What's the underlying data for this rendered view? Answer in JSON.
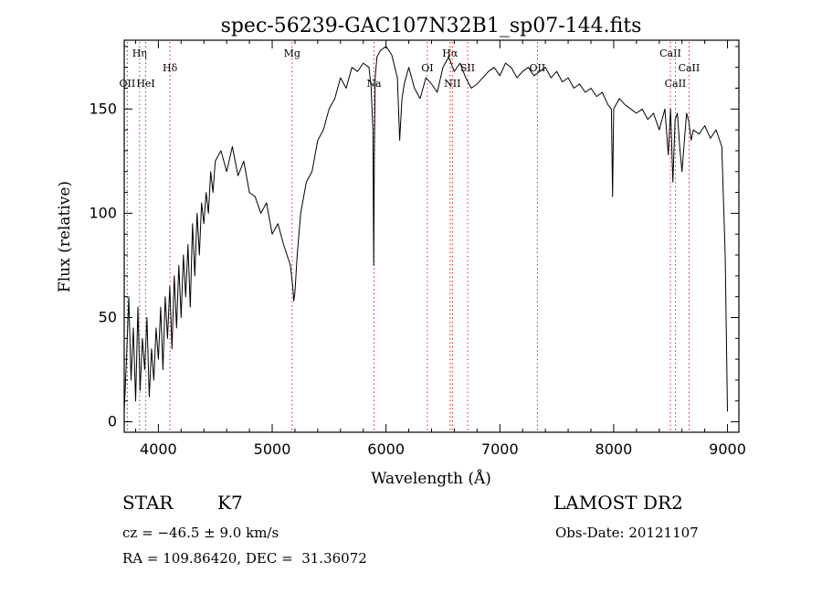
{
  "chart_data": {
    "type": "line",
    "title": "spec-56239-GAC107N32B1_sp07-144.fits",
    "xlabel": "Wavelength (Å)",
    "ylabel": "Flux (relative)",
    "xlim": [
      3700,
      9100
    ],
    "ylim": [
      -5,
      183
    ],
    "xticks": [
      4000,
      5000,
      6000,
      7000,
      8000,
      9000
    ],
    "xtick_labels": [
      "4000",
      "5000",
      "6000",
      "7000",
      "8000",
      "9000"
    ],
    "yticks": [
      0,
      50,
      100,
      150
    ],
    "ytick_labels": [
      "0",
      "50",
      "100",
      "150"
    ],
    "grid": false,
    "series": [
      {
        "color": "#000000",
        "x": [
          3700,
          3720,
          3740,
          3760,
          3780,
          3800,
          3820,
          3840,
          3860,
          3880,
          3900,
          3920,
          3940,
          3960,
          3980,
          4000,
          4020,
          4040,
          4060,
          4080,
          4100,
          4120,
          4140,
          4160,
          4180,
          4200,
          4220,
          4240,
          4260,
          4280,
          4300,
          4320,
          4340,
          4360,
          4380,
          4400,
          4420,
          4440,
          4460,
          4480,
          4500,
          4550,
          4600,
          4650,
          4700,
          4750,
          4800,
          4850,
          4900,
          4950,
          5000,
          5050,
          5100,
          5130,
          5160,
          5180,
          5190,
          5200,
          5220,
          5250,
          5300,
          5350,
          5400,
          5450,
          5500,
          5550,
          5600,
          5650,
          5700,
          5750,
          5800,
          5850,
          5870,
          5885,
          5892,
          5898,
          5905,
          5920,
          5950,
          6000,
          6050,
          6100,
          6120,
          6140,
          6160,
          6200,
          6250,
          6300,
          6350,
          6400,
          6450,
          6500,
          6550,
          6600,
          6650,
          6700,
          6750,
          6800,
          6850,
          6900,
          6950,
          7000,
          7050,
          7100,
          7150,
          7200,
          7250,
          7300,
          7350,
          7400,
          7450,
          7500,
          7550,
          7600,
          7650,
          7700,
          7750,
          7800,
          7850,
          7900,
          7950,
          7980,
          7990,
          8000,
          8050,
          8100,
          8150,
          8200,
          8250,
          8300,
          8350,
          8400,
          8450,
          8480,
          8500,
          8520,
          8540,
          8560,
          8580,
          8600,
          8640,
          8660,
          8680,
          8700,
          8750,
          8800,
          8850,
          8900,
          8950,
          8980,
          9000
        ],
        "y": [
          5,
          30,
          60,
          20,
          45,
          10,
          55,
          15,
          40,
          25,
          50,
          12,
          35,
          20,
          45,
          30,
          55,
          25,
          60,
          40,
          65,
          35,
          70,
          45,
          75,
          50,
          80,
          60,
          85,
          55,
          95,
          70,
          100,
          80,
          105,
          95,
          110,
          100,
          120,
          110,
          125,
          130,
          120,
          132,
          118,
          125,
          110,
          108,
          100,
          105,
          90,
          95,
          85,
          80,
          75,
          65,
          58,
          62,
          80,
          100,
          115,
          120,
          135,
          140,
          150,
          155,
          165,
          160,
          170,
          168,
          172,
          170,
          160,
          140,
          75,
          130,
          165,
          175,
          178,
          180,
          176,
          165,
          135,
          155,
          162,
          170,
          160,
          155,
          165,
          162,
          158,
          170,
          175,
          168,
          172,
          165,
          160,
          162,
          165,
          168,
          170,
          166,
          172,
          170,
          165,
          168,
          170,
          166,
          168,
          170,
          165,
          168,
          163,
          165,
          160,
          162,
          158,
          160,
          156,
          158,
          152,
          150,
          108,
          150,
          155,
          152,
          150,
          148,
          150,
          145,
          148,
          140,
          150,
          128,
          150,
          115,
          145,
          148,
          132,
          120,
          148,
          144,
          135,
          140,
          138,
          142,
          136,
          140,
          132,
          80,
          5
        ]
      }
    ],
    "lines": [
      {
        "label": "Hη",
        "x": 3835,
        "row": 1
      },
      {
        "label": "OII",
        "x": 3727,
        "row": 3
      },
      {
        "label": "HeI",
        "x": 3889,
        "row": 3
      },
      {
        "label": "Hδ",
        "x": 4102,
        "row": 2
      },
      {
        "label": "Mg",
        "x": 5175,
        "row": 1
      },
      {
        "label": "Na",
        "x": 5894,
        "row": 3
      },
      {
        "label": "OI",
        "x": 6363,
        "row": 2
      },
      {
        "label": "Hα",
        "x": 6563,
        "row": 1
      },
      {
        "label": "NII",
        "x": 6583,
        "row": 3
      },
      {
        "label": "SII",
        "x": 6717,
        "row": 2
      },
      {
        "label": "OII",
        "x": 7330,
        "row": 2
      },
      {
        "label": "CaII",
        "x": 8498,
        "row": 1
      },
      {
        "label": "CaII",
        "x": 8542,
        "row": 3
      },
      {
        "label": "CaII",
        "x": 8662,
        "row": 2
      }
    ]
  },
  "info": {
    "object_type": "STAR",
    "subclass": "K7",
    "redshift": "cz = −46.5 ± 9.0 km/s",
    "coords": "RA = 109.86420, DEC =  31.36072",
    "survey": "LAMOST DR2",
    "obs_date": "Obs-Date: 20121107"
  }
}
